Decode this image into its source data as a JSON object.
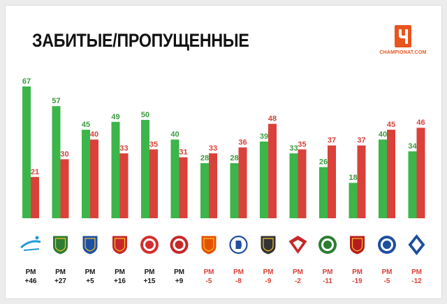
{
  "title": "ЗАБИТЫЕ/ПРОПУЩЕННЫЕ",
  "brand": {
    "name": "CHAMPIONAT.COM",
    "logo_glyph": "Ч",
    "color": "#e8541e"
  },
  "colors": {
    "scored": "#3cb54a",
    "conceded": "#d9413a",
    "positive_diff": "#1a1a1a",
    "negative_diff": "#d9413a"
  },
  "chart_data": {
    "type": "bar",
    "title": "ЗАБИТЫЕ/ПРОПУЩЕННЫЕ",
    "xlabel": "",
    "ylabel": "",
    "ylim": [
      0,
      70
    ],
    "grid": false,
    "legend": "none",
    "categories": [
      "Зенит",
      "Краснодар",
      "Ростов",
      "ЦСКА",
      "Локомотив",
      "Арсенал",
      "Уфа",
      "Динамо",
      "Урал",
      "Спартак",
      "Ахмат",
      "Рубин",
      "Оренбург",
      "Крылья Советов"
    ],
    "series": [
      {
        "key": "scored",
        "values": [
          67,
          57,
          45,
          49,
          50,
          40,
          28,
          28,
          39,
          33,
          26,
          18,
          40,
          34
        ]
      },
      {
        "key": "conceded",
        "values": [
          21,
          30,
          40,
          33,
          35,
          31,
          33,
          36,
          48,
          35,
          37,
          37,
          45,
          46
        ]
      }
    ],
    "diff_caption": "РМ",
    "diff_labels": [
      "+46",
      "+27",
      "+5",
      "+16",
      "+15",
      "+9",
      "-5",
      "-8",
      "-9",
      "-2",
      "-11",
      "-19",
      "-5",
      "-12"
    ]
  },
  "team_icons": [
    {
      "name": "zenit-logo-icon",
      "shape": "word",
      "text": "Зенит",
      "color": "#1e9ad6"
    },
    {
      "name": "krasnodar-logo-icon",
      "shape": "shield",
      "text": "ФК",
      "color": "#2e7d32"
    },
    {
      "name": "rostov-logo-icon",
      "shape": "shield",
      "text": "Р",
      "color": "#1e4fa0"
    },
    {
      "name": "cska-logo-icon",
      "shape": "shield",
      "text": "ЦСКА",
      "color": "#c62828"
    },
    {
      "name": "lokomotiv-logo-icon",
      "shape": "circle",
      "text": "Л",
      "color": "#d32f2f"
    },
    {
      "name": "arsenal-logo-icon",
      "shape": "circle",
      "text": "А",
      "color": "#c62828"
    },
    {
      "name": "ufa-logo-icon",
      "shape": "shield",
      "text": "УФА",
      "color": "#e65100"
    },
    {
      "name": "dinamo-logo-icon",
      "shape": "letter",
      "text": "Д",
      "color": "#1e4fa0"
    },
    {
      "name": "ural-logo-icon",
      "shape": "shield",
      "text": "УРАЛ",
      "color": "#333333"
    },
    {
      "name": "spartak-logo-icon",
      "shape": "rhombus",
      "text": "С",
      "color": "#c62828"
    },
    {
      "name": "akhmat-logo-icon",
      "shape": "circle",
      "text": "А",
      "color": "#2e7d32"
    },
    {
      "name": "rubin-logo-icon",
      "shape": "shield",
      "text": "РУБИН",
      "color": "#b71c1c"
    },
    {
      "name": "orenburg-logo-icon",
      "shape": "circle",
      "text": "О",
      "color": "#1e4fa0"
    },
    {
      "name": "krylia-logo-icon",
      "shape": "diamond",
      "text": "КС",
      "color": "#1e4fa0"
    }
  ]
}
